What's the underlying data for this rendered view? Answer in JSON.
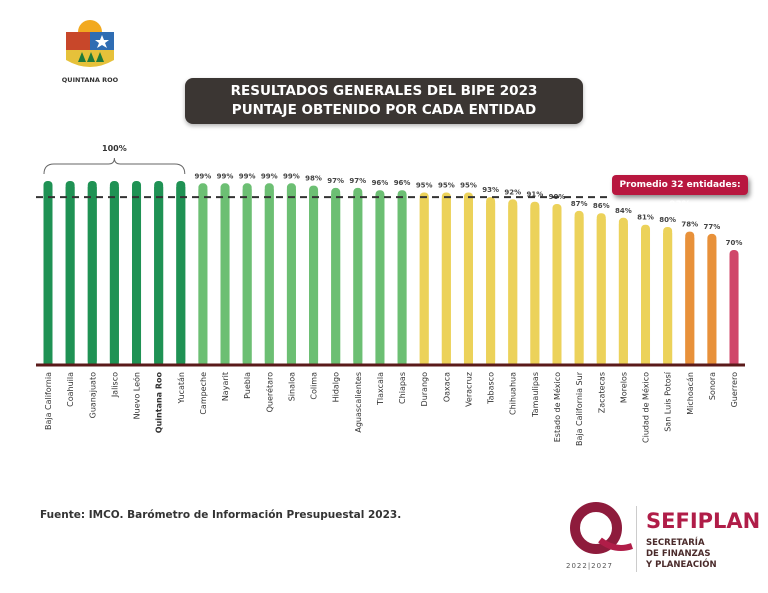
{
  "logo": {
    "text": "QUINTANA ROO"
  },
  "header": {
    "line1": "RESULTADOS GENERALES DEL BIPE 2023",
    "line2": "PUNTAJE OBTENIDO POR CADA ENTIDAD"
  },
  "chart_data": {
    "type": "bar",
    "categories": [
      "Baja California",
      "Coahuila",
      "Guanajuato",
      "Jalisco",
      "Nuevo León",
      "Quintana Roo",
      "Yucatán",
      "Campeche",
      "Nayarit",
      "Puebla",
      "Querétaro",
      "Sinaloa",
      "Colima",
      "Hidalgo",
      "Aguascalientes",
      "Tlaxcala",
      "Chiapas",
      "Durango",
      "Oaxaca",
      "Veracruz",
      "Tabasco",
      "Chihuahua",
      "Tamaulipas",
      "Estado de México",
      "Baja California Sur",
      "Zacatecas",
      "Morelos",
      "Ciudad de México",
      "San Luis Potosí",
      "Michoacán",
      "Sonora",
      "Guerrero"
    ],
    "values": [
      100,
      100,
      100,
      100,
      100,
      100,
      100,
      99,
      99,
      99,
      99,
      99,
      98,
      97,
      97,
      96,
      96,
      95,
      95,
      95,
      93,
      92,
      91,
      90,
      87,
      86,
      84,
      81,
      80,
      78,
      77,
      70
    ],
    "data_labels": [
      "",
      "",
      "",
      "",
      "",
      "",
      "",
      "99%",
      "99%",
      "99%",
      "99%",
      "99%",
      "98%",
      "97%",
      "97%",
      "96%",
      "96%",
      "95%",
      "95%",
      "95%",
      "93%",
      "92%",
      "91%",
      "90%",
      "87%",
      "86%",
      "84%",
      "81%",
      "80%",
      "78%",
      "77%",
      "70%"
    ],
    "group_label": "100%",
    "highlight_category": "Quintana Roo",
    "average": {
      "value": 93,
      "label": "Promedio 32 entidades: 93%"
    },
    "ylim": [
      20,
      100
    ],
    "grid": false,
    "colors": {
      "100": "#1f9254",
      "96-99": "#6cbf73",
      "80-95": "#ecd25a",
      "77-78": "#e8913a",
      "70": "#d0476a",
      "baseline": "#5a1a1a"
    }
  },
  "footer": {
    "source": "Fuente: IMCO. Barómetro de Información Presupuestal 2023.",
    "brand": "SEFIPLAN",
    "brand_sub1": "SECRETARÍA",
    "brand_sub2": "DE FINANZAS",
    "brand_sub3": "Y PLANEACIÓN",
    "years": "2022|2027"
  }
}
